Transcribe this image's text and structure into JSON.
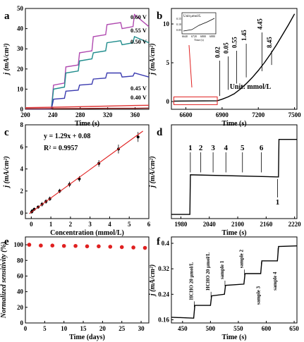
{
  "figure": {
    "panel_labels": [
      "a",
      "b",
      "c",
      "d",
      "e",
      "f"
    ]
  },
  "chart_data": [
    {
      "panel": "a",
      "type": "line",
      "xlabel": "Time (s)",
      "ylabel": "j (mA/cm²)",
      "xlim": [
        200,
        380
      ],
      "ylim": [
        0,
        50
      ],
      "xticks": [
        200,
        240,
        280,
        320,
        360
      ],
      "yticks": [
        0,
        10,
        20,
        30,
        40,
        50
      ],
      "grid": false,
      "series": [
        {
          "name": "0.60 V",
          "color": "#b04ab0",
          "x": [
            200,
            238,
            241,
            257,
            259,
            277,
            279,
            297,
            299,
            317,
            319,
            339,
            341,
            357,
            359,
            380
          ],
          "y": [
            0.3,
            0.3,
            12,
            13,
            21,
            22,
            28,
            29,
            36,
            37,
            42,
            43,
            40,
            41,
            47,
            41
          ]
        },
        {
          "name": "0.55 V",
          "color": "#1f8c8c",
          "x": [
            200,
            238,
            241,
            257,
            259,
            277,
            279,
            297,
            299,
            317,
            319,
            339,
            341,
            357,
            359,
            380
          ],
          "y": [
            0.2,
            0.2,
            10,
            11,
            18,
            19,
            24,
            25,
            28,
            29,
            33,
            34,
            32,
            33,
            36,
            33
          ]
        },
        {
          "name": "0.50 V",
          "color": "#3b3bb0",
          "x": [
            200,
            238,
            241,
            257,
            259,
            277,
            279,
            297,
            299,
            317,
            319,
            339,
            341,
            357,
            359,
            380
          ],
          "y": [
            0.1,
            0.1,
            5,
            5.5,
            9,
            9.5,
            12,
            12.5,
            15,
            15.5,
            18,
            18,
            16,
            16.5,
            18,
            16
          ]
        },
        {
          "name": "0.45 V",
          "color": "#e03030",
          "x": [
            200,
            240,
            280,
            320,
            360,
            380
          ],
          "y": [
            0.8,
            1.0,
            1.3,
            1.6,
            1.9,
            2.0
          ]
        },
        {
          "name": "0.40 V",
          "color": "#8a2020",
          "x": [
            200,
            240,
            280,
            320,
            360,
            380
          ],
          "y": [
            0.2,
            0.3,
            0.4,
            0.5,
            0.5,
            0.6
          ]
        }
      ]
    },
    {
      "panel": "b",
      "type": "line",
      "xlabel": "Time (s)",
      "ylabel": "j (mA/cm²)",
      "xlim": [
        6480,
        7520
      ],
      "ylim": [
        -1,
        12
      ],
      "xticks": [
        6600,
        6900,
        7200,
        7500
      ],
      "yticks": [
        0,
        5,
        10
      ],
      "grid": false,
      "annotation_unit": "Unit: mmol/L",
      "inset_label": "Unit:μmol/L",
      "inset_yticks": [
        "0.15",
        "0.10",
        "0.05"
      ],
      "inset_xticks": [
        "6640",
        "6720",
        "6800",
        "6880"
      ],
      "inset_xlabel": "Time (s)",
      "annotations": [
        "0.02",
        "0.05",
        "0.55",
        "1.45",
        "4.45",
        "8.45"
      ],
      "series": [
        {
          "name": "",
          "color": "#000000",
          "x": [
            6500,
            6860,
            6900,
            6950,
            7000,
            7050,
            7100,
            7150,
            7200,
            7250,
            7300,
            7350,
            7400,
            7450,
            7500
          ],
          "y": [
            0.05,
            0.1,
            0.3,
            0.6,
            1.0,
            1.6,
            2.3,
            3.1,
            4.0,
            5.0,
            6.1,
            7.3,
            8.6,
            9.9,
            11.3
          ]
        }
      ]
    },
    {
      "panel": "c",
      "type": "scatter",
      "xlabel": "Concentration (mmol/L)",
      "ylabel": "j (mA/cm²)",
      "xlim": [
        -0.3,
        6
      ],
      "ylim": [
        -0.5,
        8
      ],
      "xticks": [
        0,
        1,
        2,
        3,
        4,
        5,
        6
      ],
      "yticks": [
        0,
        2,
        4,
        6,
        8
      ],
      "equation": "y = 1.29x + 0.08",
      "r2_label": "R² = 0.9957",
      "fit": {
        "slope": 1.29,
        "intercept": 0.08
      },
      "x": [
        0.02,
        0.05,
        0.15,
        0.35,
        0.55,
        0.75,
        0.95,
        1.45,
        1.95,
        2.45,
        3.45,
        4.45,
        5.45
      ],
      "y": [
        0.1,
        0.2,
        0.35,
        0.55,
        0.8,
        1.05,
        1.3,
        2.0,
        2.6,
        3.1,
        4.5,
        5.8,
        6.9
      ],
      "err": [
        0.1,
        0.1,
        0.15,
        0.15,
        0.2,
        0.2,
        0.2,
        0.2,
        0.25,
        0.25,
        0.3,
        0.4,
        0.45
      ]
    },
    {
      "panel": "d",
      "type": "line",
      "xlabel": "Time (s)",
      "ylabel": "j (mA/cm²)",
      "xlim": [
        1960,
        2225
      ],
      "ylim": [
        0,
        4.5
      ],
      "xticks": [
        1980,
        2040,
        2100,
        2160,
        2220
      ],
      "yticks": [],
      "annotations": [
        "1",
        "2",
        "3",
        "4",
        "5",
        "6",
        "1"
      ],
      "series": [
        {
          "name": "",
          "color": "#000000",
          "x": [
            1960,
            1999,
            2000,
            2186,
            2187,
            2225
          ],
          "y": [
            0.2,
            0.2,
            2.1,
            2.0,
            3.8,
            3.8
          ]
        }
      ]
    },
    {
      "panel": "e",
      "type": "scatter",
      "xlabel": "Time (days)",
      "ylabel": "Normalized sensitivity (%)",
      "xlim": [
        0,
        32
      ],
      "ylim": [
        0,
        110
      ],
      "xticks": [
        0,
        5,
        10,
        15,
        20,
        25,
        30
      ],
      "yticks": [
        0,
        20,
        40,
        60,
        80,
        100
      ],
      "x": [
        1,
        4,
        7,
        10,
        13,
        16,
        19,
        22,
        25,
        28,
        31
      ],
      "y": [
        100,
        99,
        99,
        98.5,
        98.5,
        98,
        98,
        97.5,
        97,
        96.5,
        96
      ]
    },
    {
      "panel": "f",
      "type": "line",
      "xlabel": "Time (s)",
      "ylabel": "j (mA/cm²)",
      "xlim": [
        430,
        655
      ],
      "ylim": [
        0.15,
        0.42
      ],
      "xticks": [
        450,
        500,
        550,
        600,
        650
      ],
      "yticks": [
        0.16,
        0.24,
        0.32,
        0.4
      ],
      "annotations": [
        "HCHO 20 μmol/L",
        "HCHO 20 μmol/L",
        "sample 1",
        "sample 2",
        "sample 3",
        "sample 4"
      ],
      "series": [
        {
          "name": "",
          "color": "#000000",
          "x": [
            430,
            470,
            472,
            500,
            502,
            525,
            527,
            560,
            562,
            590,
            592,
            620,
            622,
            655
          ],
          "y": [
            0.168,
            0.165,
            0.205,
            0.205,
            0.235,
            0.24,
            0.268,
            0.272,
            0.305,
            0.305,
            0.345,
            0.345,
            0.39,
            0.392
          ]
        }
      ]
    }
  ]
}
